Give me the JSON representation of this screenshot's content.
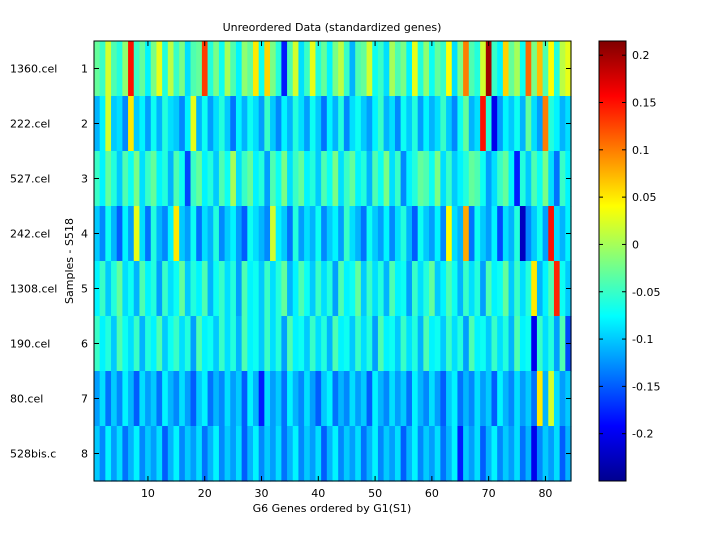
{
  "chart_data": {
    "type": "heatmap",
    "title": "Unreordered Data (standardized genes)",
    "xlabel": "G6 Genes ordered by G1(S1)",
    "ylabel": "Samples - S518",
    "xlim": [
      0.5,
      84.5
    ],
    "x_ticks": [
      10,
      20,
      30,
      40,
      50,
      60,
      70,
      80
    ],
    "y_ticks": [
      1,
      2,
      3,
      4,
      5,
      6,
      7,
      8
    ],
    "row_labels": [
      "1360.cel",
      "222.cel",
      "527.cel",
      "242.cel",
      "1308.cel",
      "190.cel",
      "80.cel",
      "528bis.c"
    ],
    "n_columns": 84,
    "colormap": "jet",
    "clim": [
      -0.25,
      0.215
    ],
    "colorbar_ticks": [
      0.2,
      0.15,
      0.1,
      0.05,
      0,
      -0.05,
      -0.1,
      -0.15,
      -0.2
    ],
    "colorbar_labels": [
      "0.2",
      "0.15",
      "0.1",
      "0.05",
      "0",
      "-0.05",
      "-0.1",
      "-0.15",
      "-0.2"
    ],
    "values": [
      [
        -0.03,
        -0.05,
        0.02,
        -0.04,
        -0.06,
        -0.01,
        0.15,
        -0.05,
        -0.03,
        -0.08,
        -0.02,
        0.03,
        -0.06,
        0.01,
        -0.05,
        -0.02,
        -0.09,
        -0.04,
        -0.03,
        0.13,
        -0.06,
        -0.02,
        -0.07,
        0.0,
        -0.04,
        -0.08,
        -0.01,
        -0.03,
        0.05,
        -0.07,
        0.06,
        -0.02,
        -0.06,
        -0.18,
        -0.04,
        0.02,
        -0.09,
        -0.05,
        0.03,
        -0.06,
        -0.03,
        -0.08,
        -0.02,
        0.01,
        -0.05,
        -0.11,
        -0.04,
        -0.03,
        0.02,
        -0.07,
        -0.05,
        -0.09,
        0.0,
        -0.04,
        -0.02,
        -0.08,
        0.03,
        -0.06,
        -0.01,
        -0.07,
        -0.03,
        -0.05,
        0.04,
        -0.09,
        -0.02,
        0.1,
        -0.04,
        -0.06,
        0.02,
        0.2,
        -0.05,
        -0.08,
        0.06,
        -0.03,
        0.0,
        -0.07,
        0.11,
        -0.02,
        0.07,
        -0.04,
        0.04,
        -0.06,
        0.01,
        0.03
      ],
      [
        -0.11,
        -0.08,
        0.02,
        -0.1,
        -0.09,
        -0.13,
        0.05,
        -0.1,
        -0.08,
        -0.12,
        -0.07,
        -0.11,
        -0.06,
        -0.09,
        -0.1,
        -0.13,
        -0.08,
        0.03,
        -0.11,
        -0.07,
        -0.12,
        -0.09,
        -0.06,
        -0.1,
        -0.14,
        -0.08,
        -0.11,
        -0.07,
        -0.09,
        -0.12,
        -0.05,
        -0.1,
        -0.13,
        -0.08,
        -0.11,
        -0.06,
        -0.09,
        -0.12,
        -0.07,
        -0.1,
        -0.14,
        -0.08,
        -0.11,
        -0.06,
        -0.13,
        -0.09,
        -0.07,
        -0.1,
        -0.12,
        -0.08,
        -0.05,
        -0.11,
        -0.09,
        -0.13,
        -0.07,
        -0.1,
        -0.06,
        -0.12,
        -0.08,
        -0.11,
        -0.09,
        -0.05,
        -0.1,
        -0.13,
        -0.07,
        -0.03,
        -0.11,
        -0.09,
        0.15,
        -0.06,
        -0.2,
        -0.12,
        -0.08,
        -0.1,
        -0.07,
        -0.11,
        -0.03,
        -0.09,
        -0.12,
        0.1,
        -0.06,
        -0.08,
        -0.11,
        -0.09
      ],
      [
        -0.05,
        -0.08,
        -0.03,
        -0.06,
        -0.1,
        -0.04,
        -0.07,
        -0.02,
        -0.09,
        -0.05,
        -0.03,
        -0.08,
        -0.06,
        -0.11,
        -0.04,
        -0.07,
        -0.16,
        -0.05,
        -0.03,
        -0.08,
        -0.06,
        -0.1,
        -0.04,
        -0.07,
        0.0,
        -0.09,
        -0.05,
        -0.03,
        -0.08,
        -0.06,
        -0.12,
        -0.04,
        -0.07,
        -0.02,
        -0.09,
        -0.05,
        -0.03,
        -0.08,
        -0.06,
        -0.1,
        -0.04,
        -0.07,
        -0.02,
        -0.09,
        -0.05,
        -0.03,
        -0.08,
        -0.06,
        -0.11,
        -0.04,
        -0.07,
        -0.02,
        -0.09,
        -0.05,
        -0.13,
        -0.08,
        -0.06,
        -0.03,
        -0.04,
        -0.07,
        -0.02,
        -0.09,
        -0.05,
        -0.1,
        -0.08,
        -0.06,
        -0.03,
        -0.04,
        -0.07,
        -0.12,
        -0.09,
        -0.05,
        -0.03,
        -0.08,
        -0.18,
        -0.06,
        -0.1,
        -0.04,
        -0.07,
        -0.02,
        -0.09,
        -0.14,
        -0.05,
        -0.08
      ],
      [
        -0.1,
        -0.13,
        -0.07,
        -0.11,
        -0.15,
        -0.08,
        -0.12,
        0.03,
        -0.09,
        -0.14,
        -0.06,
        -0.11,
        -0.13,
        -0.08,
        0.05,
        -0.1,
        -0.12,
        -0.07,
        -0.14,
        -0.09,
        -0.11,
        -0.06,
        -0.13,
        -0.1,
        -0.08,
        -0.12,
        -0.15,
        -0.07,
        -0.09,
        -0.11,
        -0.13,
        0.02,
        -0.08,
        -0.1,
        -0.14,
        -0.06,
        -0.12,
        -0.09,
        -0.11,
        -0.07,
        -0.13,
        -0.1,
        -0.08,
        -0.12,
        -0.05,
        -0.09,
        -0.11,
        -0.14,
        -0.07,
        -0.1,
        -0.12,
        -0.08,
        -0.13,
        -0.09,
        -0.06,
        -0.11,
        -0.15,
        -0.07,
        -0.1,
        -0.12,
        -0.08,
        -0.13,
        0.04,
        -0.09,
        -0.11,
        0.08,
        -0.14,
        -0.07,
        -0.1,
        -0.12,
        -0.08,
        -0.16,
        -0.09,
        -0.11,
        -0.06,
        -0.22,
        -0.13,
        -0.1,
        -0.07,
        -0.12,
        0.15,
        -0.09,
        -0.11,
        -0.08
      ],
      [
        -0.08,
        -0.05,
        -0.1,
        -0.06,
        -0.03,
        -0.09,
        -0.07,
        -0.11,
        -0.04,
        -0.08,
        -0.06,
        -0.12,
        -0.05,
        -0.09,
        -0.07,
        -0.03,
        -0.1,
        -0.06,
        -0.08,
        -0.04,
        -0.11,
        -0.07,
        -0.05,
        -0.09,
        -0.06,
        -0.12,
        -0.04,
        -0.08,
        -0.07,
        -0.1,
        -0.05,
        -0.09,
        -0.06,
        -0.03,
        -0.11,
        -0.08,
        -0.04,
        -0.07,
        -0.1,
        -0.05,
        -0.09,
        -0.06,
        -0.12,
        -0.04,
        -0.08,
        -0.07,
        -0.03,
        -0.1,
        -0.05,
        -0.09,
        -0.06,
        -0.11,
        -0.04,
        -0.08,
        -0.07,
        -0.12,
        -0.05,
        -0.09,
        -0.06,
        -0.03,
        -0.1,
        -0.08,
        -0.04,
        -0.07,
        -0.11,
        -0.05,
        -0.09,
        -0.06,
        -0.12,
        -0.04,
        -0.08,
        -0.07,
        -0.03,
        -0.1,
        -0.05,
        -0.09,
        -0.06,
        0.05,
        -0.11,
        -0.08,
        -0.04,
        0.14,
        -0.07,
        -0.1
      ],
      [
        -0.05,
        -0.08,
        -0.06,
        -0.1,
        -0.04,
        -0.07,
        -0.09,
        -0.05,
        -0.11,
        -0.06,
        -0.08,
        -0.04,
        -0.1,
        -0.07,
        -0.05,
        -0.09,
        -0.06,
        -0.12,
        -0.04,
        -0.08,
        -0.07,
        -0.1,
        -0.05,
        -0.09,
        -0.06,
        -0.11,
        -0.04,
        -0.08,
        -0.07,
        -0.1,
        -0.05,
        -0.09,
        -0.06,
        -0.12,
        -0.04,
        -0.08,
        -0.07,
        -0.1,
        -0.05,
        -0.09,
        -0.06,
        -0.11,
        -0.04,
        -0.08,
        -0.07,
        -0.1,
        -0.05,
        -0.09,
        -0.06,
        -0.12,
        -0.04,
        -0.08,
        -0.07,
        -0.1,
        -0.05,
        -0.09,
        -0.06,
        -0.11,
        -0.04,
        -0.08,
        -0.07,
        -0.1,
        -0.05,
        -0.09,
        -0.06,
        -0.12,
        -0.04,
        -0.08,
        -0.07,
        -0.1,
        -0.05,
        -0.09,
        -0.06,
        -0.11,
        -0.04,
        -0.08,
        -0.07,
        -0.2,
        -0.05,
        -0.09,
        -0.06,
        -0.12,
        -0.04,
        -0.16
      ],
      [
        -0.12,
        -0.09,
        -0.14,
        -0.1,
        -0.13,
        -0.08,
        -0.11,
        -0.15,
        -0.09,
        -0.12,
        -0.1,
        -0.14,
        -0.08,
        -0.11,
        -0.13,
        -0.09,
        -0.12,
        -0.15,
        -0.1,
        -0.08,
        -0.14,
        -0.11,
        -0.13,
        -0.09,
        -0.12,
        -0.1,
        -0.15,
        -0.08,
        -0.11,
        -0.18,
        -0.09,
        -0.12,
        -0.1,
        -0.14,
        -0.08,
        -0.11,
        -0.13,
        -0.09,
        -0.12,
        -0.15,
        -0.1,
        -0.08,
        -0.14,
        -0.11,
        -0.13,
        -0.09,
        -0.12,
        -0.1,
        -0.15,
        -0.08,
        -0.11,
        -0.13,
        -0.09,
        -0.12,
        -0.1,
        -0.14,
        -0.08,
        -0.11,
        -0.13,
        -0.09,
        -0.12,
        -0.15,
        -0.1,
        -0.08,
        -0.14,
        -0.11,
        -0.13,
        -0.09,
        -0.12,
        -0.1,
        -0.15,
        -0.08,
        -0.11,
        -0.13,
        -0.09,
        -0.12,
        -0.1,
        -0.14,
        0.05,
        -0.11,
        0.02,
        -0.09,
        -0.12,
        -0.1
      ],
      [
        -0.1,
        -0.13,
        -0.08,
        -0.12,
        -0.09,
        -0.14,
        -0.11,
        -0.08,
        -0.13,
        -0.1,
        -0.12,
        -0.09,
        -0.15,
        -0.11,
        -0.08,
        -0.13,
        -0.1,
        -0.12,
        -0.09,
        -0.14,
        -0.11,
        -0.08,
        -0.13,
        -0.1,
        -0.12,
        -0.09,
        -0.15,
        -0.11,
        -0.08,
        -0.13,
        -0.1,
        -0.12,
        -0.09,
        -0.14,
        -0.11,
        -0.08,
        -0.13,
        -0.1,
        -0.12,
        -0.09,
        -0.15,
        -0.11,
        -0.08,
        -0.13,
        -0.1,
        -0.12,
        -0.09,
        -0.14,
        -0.11,
        -0.08,
        -0.13,
        -0.1,
        -0.12,
        -0.09,
        -0.15,
        -0.11,
        -0.08,
        -0.13,
        -0.1,
        -0.12,
        -0.09,
        -0.14,
        -0.11,
        -0.08,
        -0.18,
        -0.1,
        -0.12,
        -0.09,
        -0.15,
        -0.11,
        -0.08,
        -0.13,
        -0.1,
        -0.12,
        -0.09,
        -0.14,
        -0.11,
        -0.2,
        -0.13,
        -0.1,
        -0.12,
        -0.09,
        -0.15,
        -0.11
      ]
    ]
  }
}
